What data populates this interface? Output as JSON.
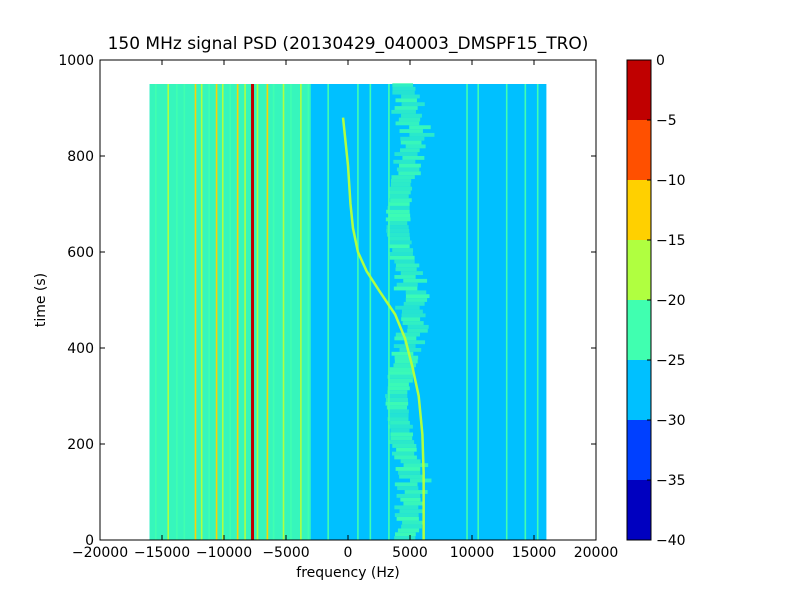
{
  "chart_data": {
    "type": "heatmap",
    "title": "150 MHz signal PSD (20130429_040003_DMSPF15_TRO)",
    "xlabel": "frequency (Hz)",
    "ylabel": "time (s)",
    "xlim": [
      -20000,
      20000
    ],
    "ylim": [
      0,
      1000
    ],
    "x_ticks": [
      -20000,
      -15000,
      -10000,
      -5000,
      0,
      5000,
      10000,
      15000,
      20000
    ],
    "x_tick_labels": [
      "−20000",
      "−15000",
      "−10000",
      "−5000",
      "0",
      "5000",
      "10000",
      "15000",
      "20000"
    ],
    "y_ticks": [
      0,
      200,
      400,
      600,
      800,
      1000
    ],
    "y_tick_labels": [
      "0",
      "200",
      "400",
      "600",
      "800",
      "1000"
    ],
    "data_extent": {
      "freq_min": -16000,
      "freq_max": 16000,
      "time_min": 0,
      "time_max": 950
    },
    "colorbar": {
      "levels": [
        -40,
        -35,
        -30,
        -25,
        -20,
        -15,
        -10,
        -5,
        0
      ],
      "tick_labels": [
        "−40",
        "−35",
        "−30",
        "−25",
        "−20",
        "−15",
        "−10",
        "−5",
        "0"
      ],
      "colors": [
        "#0000c0",
        "#0040ff",
        "#00c0ff",
        "#40ffb0",
        "#b0ff40",
        "#ffd000",
        "#ff5000",
        "#c00000"
      ]
    },
    "background_level": -27.5,
    "vertical_lines": [
      {
        "f": -15500,
        "v": -22.5
      },
      {
        "f": -14500,
        "v": -17.5
      },
      {
        "f": -13800,
        "v": -22.5
      },
      {
        "f": -13200,
        "v": -22.5
      },
      {
        "f": -12300,
        "v": -12.5
      },
      {
        "f": -11800,
        "v": -17.5
      },
      {
        "f": -11200,
        "v": -22.5
      },
      {
        "f": -10600,
        "v": -12.5
      },
      {
        "f": -10100,
        "v": -17.5
      },
      {
        "f": -9500,
        "v": -22.5
      },
      {
        "f": -8900,
        "v": -12.5
      },
      {
        "f": -8300,
        "v": -17.5
      },
      {
        "f": -7700,
        "v": -2.5
      },
      {
        "f": -7300,
        "v": -17.5
      },
      {
        "f": -6500,
        "v": -12.5
      },
      {
        "f": -6000,
        "v": -22.5
      },
      {
        "f": -5200,
        "v": -17.5
      },
      {
        "f": -4600,
        "v": -22.5
      },
      {
        "f": -3800,
        "v": -17.5
      },
      {
        "f": -3200,
        "v": -22.5
      },
      {
        "f": -1600,
        "v": -22.5
      },
      {
        "f": 800,
        "v": -22.5
      },
      {
        "f": 1800,
        "v": -22.5
      },
      {
        "f": 3300,
        "v": -22.5
      },
      {
        "f": 9600,
        "v": -22.5
      },
      {
        "f": 10500,
        "v": -22.5
      },
      {
        "f": 12800,
        "v": -22.5
      },
      {
        "f": 14300,
        "v": -22.5
      },
      {
        "f": 15300,
        "v": -22.5
      }
    ],
    "drifting_carrier": {
      "level": -17.5,
      "points": [
        [
          6100,
          0
        ],
        [
          6100,
          140
        ],
        [
          6000,
          220
        ],
        [
          5700,
          300
        ],
        [
          5200,
          360
        ],
        [
          4600,
          420
        ],
        [
          3800,
          470
        ],
        [
          2500,
          520
        ],
        [
          1500,
          560
        ],
        [
          800,
          600
        ],
        [
          400,
          650
        ],
        [
          200,
          700
        ],
        [
          0,
          780
        ],
        [
          -400,
          880
        ]
      ]
    },
    "band": {
      "center_min": 4000,
      "center_max": 6000,
      "width": 1500,
      "level": -22.5,
      "time_max": 950
    }
  }
}
